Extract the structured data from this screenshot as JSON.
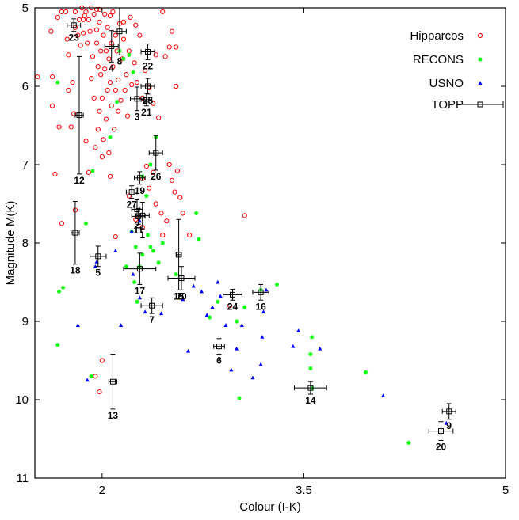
{
  "chart_data": {
    "type": "scatter",
    "xlabel": "Colour (I-K)",
    "ylabel": "Magnitude M(K)",
    "xlim": [
      1.5,
      5
    ],
    "ylim": [
      11,
      5
    ],
    "y_inverted": true,
    "xticks": [
      2,
      3.5,
      5
    ],
    "xtick_labels": [
      "2",
      "3.5",
      "5"
    ],
    "yticks": [
      5,
      6,
      7,
      8,
      9,
      10,
      11
    ],
    "ytick_labels": [
      "5",
      "6",
      "7",
      "8",
      "9",
      "10",
      "11"
    ],
    "grid": false,
    "legend_placement": "top-right",
    "colors": {
      "hipparcos": "#ff0000",
      "recons": "#00ff00",
      "usno": "#0000ff",
      "topp": "#000000"
    },
    "series": [
      {
        "name": "Hipparcos",
        "marker": "open-circle",
        "points": [
          [
            1.52,
            5.88
          ],
          [
            1.62,
            5.3
          ],
          [
            1.63,
            5.88
          ],
          [
            1.63,
            6.25
          ],
          [
            1.65,
            7.12
          ],
          [
            1.7,
            7.75
          ],
          [
            1.67,
            5.12
          ],
          [
            1.7,
            5.05
          ],
          [
            1.68,
            6.52
          ],
          [
            1.73,
            5.05
          ],
          [
            1.74,
            5.4
          ],
          [
            1.75,
            5.6
          ],
          [
            1.75,
            6.05
          ],
          [
            1.77,
            6.52
          ],
          [
            1.78,
            5.95
          ],
          [
            1.79,
            6.35
          ],
          [
            1.8,
            5.25
          ],
          [
            1.8,
            5.05
          ],
          [
            1.8,
            7.58
          ],
          [
            1.82,
            5.35
          ],
          [
            1.83,
            5.15
          ],
          [
            1.84,
            5.48
          ],
          [
            1.85,
            5.0
          ],
          [
            1.86,
            5.15
          ],
          [
            1.86,
            5.32
          ],
          [
            1.87,
            5.1
          ],
          [
            1.88,
            5.05
          ],
          [
            1.88,
            6.7
          ],
          [
            1.89,
            5.45
          ],
          [
            1.9,
            5.15
          ],
          [
            1.9,
            7.1
          ],
          [
            1.91,
            5.3
          ],
          [
            1.92,
            5.0
          ],
          [
            1.92,
            5.9
          ],
          [
            1.93,
            5.62
          ],
          [
            1.94,
            6.15
          ],
          [
            1.94,
            5.08
          ],
          [
            1.95,
            6.78
          ],
          [
            1.96,
            5.45
          ],
          [
            1.96,
            5.28
          ],
          [
            1.97,
            5.75
          ],
          [
            1.97,
            6.55
          ],
          [
            1.98,
            5.02
          ],
          [
            1.98,
            5.18
          ],
          [
            1.98,
            6.32
          ],
          [
            1.99,
            5.55
          ],
          [
            1.99,
            5.85
          ],
          [
            2.0,
            6.15
          ],
          [
            2.0,
            6.9
          ],
          [
            2.01,
            5.35
          ],
          [
            2.01,
            6.68
          ],
          [
            2.02,
            5.08
          ],
          [
            2.02,
            5.78
          ],
          [
            2.03,
            5.55
          ],
          [
            2.03,
            6.42
          ],
          [
            2.04,
            6.05
          ],
          [
            2.04,
            5.25
          ],
          [
            2.05,
            6.85
          ],
          [
            2.05,
            5.65
          ],
          [
            2.06,
            5.95
          ],
          [
            2.07,
            5.45
          ],
          [
            2.07,
            6.25
          ],
          [
            2.08,
            5.05
          ],
          [
            2.08,
            5.75
          ],
          [
            2.09,
            6.55
          ],
          [
            2.1,
            5.35
          ],
          [
            2.1,
            6.05
          ],
          [
            2.11,
            5.55
          ],
          [
            2.12,
            5.92
          ],
          [
            2.12,
            6.32
          ],
          [
            2.13,
            5.2
          ],
          [
            2.14,
            6.18
          ],
          [
            2.15,
            5.65
          ],
          [
            2.16,
            5.4
          ],
          [
            2.17,
            6.05
          ],
          [
            2.18,
            5.85
          ],
          [
            2.19,
            6.38
          ],
          [
            2.2,
            5.55
          ],
          [
            2.21,
            5.12
          ],
          [
            2.22,
            5.98
          ],
          [
            2.24,
            5.7
          ],
          [
            2.26,
            5.95
          ],
          [
            2.28,
            5.35
          ],
          [
            2.3,
            6.15
          ],
          [
            2.32,
            5.8
          ],
          [
            2.35,
            6.02
          ],
          [
            2.38,
            6.22
          ],
          [
            2.4,
            5.6
          ],
          [
            2.42,
            6.4
          ],
          [
            2.45,
            5.05
          ],
          [
            2.47,
            5.62
          ],
          [
            2.5,
            5.5
          ],
          [
            2.52,
            5.3
          ],
          [
            2.55,
            5.5
          ],
          [
            2.55,
            6.0
          ],
          [
            1.96,
            5.02
          ],
          [
            2.06,
            5.1
          ],
          [
            2.16,
            5.18
          ],
          [
            2.25,
            5.22
          ],
          [
            2.3,
            7.18
          ],
          [
            2.33,
            7.02
          ],
          [
            2.35,
            7.3
          ],
          [
            2.38,
            7.1
          ],
          [
            2.4,
            7.5
          ],
          [
            2.44,
            7.62
          ],
          [
            2.48,
            7.72
          ],
          [
            2.5,
            7.0
          ],
          [
            2.52,
            7.2
          ],
          [
            2.54,
            7.35
          ],
          [
            2.56,
            7.08
          ],
          [
            2.58,
            7.42
          ],
          [
            2.6,
            7.62
          ],
          [
            2.3,
            7.8
          ],
          [
            2.25,
            7.7
          ],
          [
            2.2,
            7.4
          ],
          [
            2.1,
            7.92
          ],
          [
            2.45,
            7.9
          ],
          [
            2.06,
            7.15
          ],
          [
            2.65,
            7.9
          ],
          [
            3.06,
            7.65
          ],
          [
            2.95,
            8.8
          ],
          [
            2.0,
            9.5
          ],
          [
            1.98,
            9.9
          ],
          [
            1.95,
            9.7
          ]
        ]
      },
      {
        "name": "RECONS",
        "marker": "asterisk",
        "points": [
          [
            1.67,
            5.95
          ],
          [
            1.68,
            8.62
          ],
          [
            1.71,
            8.57
          ],
          [
            1.67,
            9.3
          ],
          [
            1.88,
            7.75
          ],
          [
            1.93,
            7.08
          ],
          [
            2.06,
            6.65
          ],
          [
            2.11,
            6.2
          ],
          [
            2.16,
            5.65
          ],
          [
            2.18,
            8.3
          ],
          [
            2.22,
            7.85
          ],
          [
            2.24,
            8.5
          ],
          [
            2.26,
            8.75
          ],
          [
            2.28,
            8.3
          ],
          [
            2.3,
            8.15
          ],
          [
            2.34,
            7.9
          ],
          [
            2.36,
            8.05
          ],
          [
            2.38,
            8.1
          ],
          [
            2.42,
            8.25
          ],
          [
            2.45,
            8.0
          ],
          [
            2.3,
            7.15
          ],
          [
            2.33,
            7.4
          ],
          [
            2.36,
            7.0
          ],
          [
            2.4,
            6.65
          ],
          [
            2.23,
            5.82
          ],
          [
            2.2,
            5.6
          ],
          [
            2.13,
            5.55
          ],
          [
            2.7,
            7.62
          ],
          [
            2.72,
            7.95
          ],
          [
            2.55,
            8.4
          ],
          [
            2.8,
            8.95
          ],
          [
            2.86,
            8.75
          ],
          [
            3.0,
            9.0
          ],
          [
            3.06,
            8.82
          ],
          [
            3.18,
            8.6
          ],
          [
            3.3,
            8.53
          ],
          [
            3.55,
            9.6
          ],
          [
            3.55,
            9.42
          ],
          [
            3.56,
            9.2
          ],
          [
            3.96,
            9.65
          ],
          [
            3.56,
            9.85
          ],
          [
            3.02,
            9.98
          ],
          [
            4.28,
            10.55
          ],
          [
            1.92,
            9.7
          ],
          [
            2.25,
            8.05
          ]
        ]
      },
      {
        "name": "USNO",
        "marker": "filled-triangle",
        "points": [
          [
            1.82,
            9.05
          ],
          [
            1.89,
            9.75
          ],
          [
            1.95,
            8.3
          ],
          [
            2.1,
            8.1
          ],
          [
            2.14,
            9.05
          ],
          [
            2.23,
            8.4
          ],
          [
            2.28,
            8.7
          ],
          [
            2.32,
            8.88
          ],
          [
            2.44,
            8.9
          ],
          [
            2.6,
            8.72
          ],
          [
            2.64,
            9.38
          ],
          [
            2.68,
            8.55
          ],
          [
            2.74,
            8.62
          ],
          [
            2.78,
            8.92
          ],
          [
            2.82,
            8.82
          ],
          [
            2.86,
            8.5
          ],
          [
            2.88,
            8.68
          ],
          [
            2.92,
            9.05
          ],
          [
            2.96,
            9.62
          ],
          [
            3.0,
            9.35
          ],
          [
            3.04,
            9.05
          ],
          [
            3.12,
            9.72
          ],
          [
            3.18,
            9.55
          ],
          [
            3.19,
            9.2
          ],
          [
            3.22,
            8.6
          ],
          [
            3.2,
            8.88
          ],
          [
            3.42,
            9.32
          ],
          [
            3.46,
            9.12
          ],
          [
            3.62,
            9.35
          ],
          [
            4.09,
            9.95
          ],
          [
            4.56,
            10.3
          ],
          [
            2.22,
            7.85
          ],
          [
            2.28,
            7.72
          ],
          [
            1.96,
            8.24
          ]
        ]
      },
      {
        "name": "TOPP",
        "marker": "open-square-errorbar",
        "points": [
          {
            "id": "1",
            "x": 2.3,
            "y": 7.65,
            "xerr": 0.05,
            "yerr": 0.17
          },
          {
            "id": "2",
            "x": 2.26,
            "y": 7.57,
            "xerr": 0.04,
            "yerr": 0.12
          },
          {
            "id": "3",
            "x": 2.26,
            "y": 6.16,
            "xerr": 0.05,
            "yerr": 0.15
          },
          {
            "id": "4",
            "x": 2.07,
            "y": 5.49,
            "xerr": 0.05,
            "yerr": 0.2
          },
          {
            "id": "5",
            "x": 1.97,
            "y": 8.17,
            "xerr": 0.06,
            "yerr": 0.13
          },
          {
            "id": "6",
            "x": 2.87,
            "y": 9.32,
            "xerr": 0.04,
            "yerr": 0.1
          },
          {
            "id": "7",
            "x": 2.37,
            "y": 8.8,
            "xerr": 0.08,
            "yerr": 0.1
          },
          {
            "id": "8",
            "x": 2.13,
            "y": 5.3,
            "xerr": 0.05,
            "yerr": 0.3
          },
          {
            "id": "9",
            "x": 4.58,
            "y": 10.15,
            "xerr": 0.05,
            "yerr": 0.1
          },
          {
            "id": "10",
            "x": 2.59,
            "y": 8.45,
            "xerr": 0.1,
            "yerr": 0.15
          },
          {
            "id": "11",
            "x": 2.27,
            "y": 7.66,
            "xerr": 0.05,
            "yerr": 0.1
          },
          {
            "id": "12",
            "x": 1.83,
            "y": 6.37,
            "xerr": 0.03,
            "yerr": 0.75
          },
          {
            "id": "13",
            "x": 2.08,
            "y": 9.77,
            "xerr": 0.03,
            "yerr": 0.35
          },
          {
            "id": "14",
            "x": 3.55,
            "y": 9.85,
            "xerr": 0.12,
            "yerr": 0.08
          },
          {
            "id": "15",
            "x": 2.57,
            "y": 8.15,
            "xerr": 0.02,
            "yerr": 0.45
          },
          {
            "id": "16",
            "x": 3.18,
            "y": 8.63,
            "xerr": 0.06,
            "yerr": 0.1
          },
          {
            "id": "17",
            "x": 2.28,
            "y": 8.33,
            "xerr": 0.12,
            "yerr": 0.2
          },
          {
            "id": "18",
            "x": 1.8,
            "y": 7.87,
            "xerr": 0.03,
            "yerr": 0.4
          },
          {
            "id": "19",
            "x": 2.28,
            "y": 7.17,
            "xerr": 0.04,
            "yerr": 0.08
          },
          {
            "id": "20",
            "x": 4.52,
            "y": 10.4,
            "xerr": 0.09,
            "yerr": 0.12
          },
          {
            "id": "21",
            "x": 2.33,
            "y": 6.17,
            "xerr": 0.04,
            "yerr": 0.08
          },
          {
            "id": "22",
            "x": 2.34,
            "y": 5.56,
            "xerr": 0.05,
            "yerr": 0.1
          },
          {
            "id": "23",
            "x": 1.79,
            "y": 5.22,
            "xerr": 0.05,
            "yerr": 0.08
          },
          {
            "id": "24",
            "x": 2.97,
            "y": 8.66,
            "xerr": 0.07,
            "yerr": 0.07
          },
          {
            "id": "25",
            "x": 2.34,
            "y": 6.0,
            "xerr": 0.05,
            "yerr": 0.1
          },
          {
            "id": "26",
            "x": 2.4,
            "y": 6.85,
            "xerr": 0.05,
            "yerr": 0.22
          },
          {
            "id": "27",
            "x": 2.22,
            "y": 7.35,
            "xerr": 0.04,
            "yerr": 0.08
          }
        ]
      }
    ]
  }
}
